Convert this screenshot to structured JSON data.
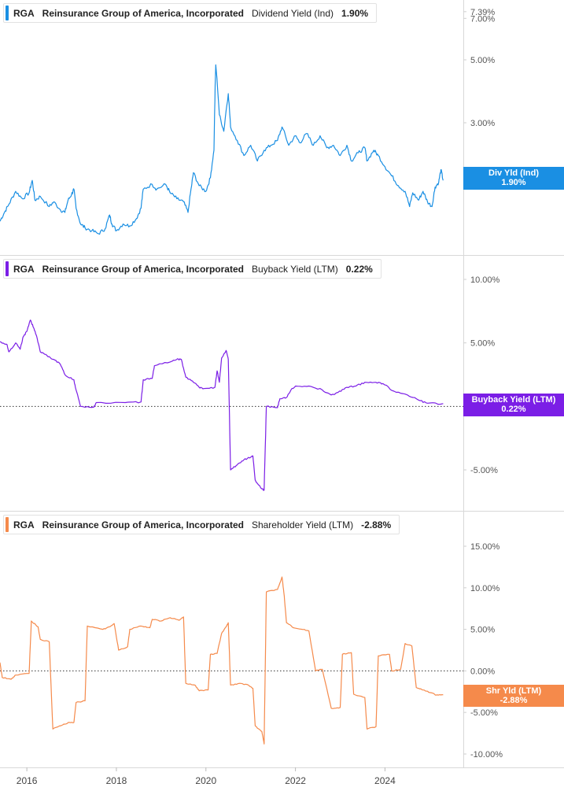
{
  "chart_data": [
    {
      "type": "line",
      "ticker": "RGA",
      "company": "Reinsurance Group of America, Incorporated",
      "metric": "Dividend Yield (Ind)",
      "latest_value": "1.90%",
      "tag_label": "Div Yld (Ind)",
      "tag_value": "1.90%",
      "color": "#1a8fe3",
      "scale": "log",
      "y_ticks": [
        {
          "v": 7.39,
          "label": "7.39%"
        },
        {
          "v": 7.0,
          "label": "7.00%"
        },
        {
          "v": 5.0,
          "label": "5.00%"
        },
        {
          "v": 3.0,
          "label": "3.00%"
        },
        {
          "v": 2.0,
          "label": "2.00%"
        }
      ],
      "zero_line": false,
      "points": [
        [
          2015.4,
          1.35
        ],
        [
          2015.5,
          1.45
        ],
        [
          2015.6,
          1.55
        ],
        [
          2015.75,
          1.72
        ],
        [
          2015.9,
          1.62
        ],
        [
          2016.05,
          1.7
        ],
        [
          2016.12,
          1.88
        ],
        [
          2016.18,
          1.6
        ],
        [
          2016.3,
          1.65
        ],
        [
          2016.5,
          1.52
        ],
        [
          2016.6,
          1.58
        ],
        [
          2016.75,
          1.48
        ],
        [
          2016.85,
          1.45
        ],
        [
          2016.92,
          1.6
        ],
        [
          2017.0,
          1.68
        ],
        [
          2017.05,
          1.75
        ],
        [
          2017.1,
          1.5
        ],
        [
          2017.2,
          1.32
        ],
        [
          2017.3,
          1.28
        ],
        [
          2017.45,
          1.25
        ],
        [
          2017.6,
          1.22
        ],
        [
          2017.75,
          1.27
        ],
        [
          2017.85,
          1.42
        ],
        [
          2017.9,
          1.32
        ],
        [
          2018.0,
          1.25
        ],
        [
          2018.15,
          1.32
        ],
        [
          2018.3,
          1.3
        ],
        [
          2018.45,
          1.38
        ],
        [
          2018.55,
          1.5
        ],
        [
          2018.6,
          1.75
        ],
        [
          2018.8,
          1.82
        ],
        [
          2018.9,
          1.75
        ],
        [
          2019.1,
          1.82
        ],
        [
          2019.2,
          1.7
        ],
        [
          2019.35,
          1.62
        ],
        [
          2019.5,
          1.58
        ],
        [
          2019.6,
          1.45
        ],
        [
          2019.68,
          1.8
        ],
        [
          2019.72,
          2.0
        ],
        [
          2019.85,
          1.8
        ],
        [
          2020.0,
          1.72
        ],
        [
          2020.1,
          1.92
        ],
        [
          2020.18,
          2.4
        ],
        [
          2020.22,
          4.8
        ],
        [
          2020.3,
          3.2
        ],
        [
          2020.4,
          2.8
        ],
        [
          2020.5,
          3.8
        ],
        [
          2020.55,
          2.9
        ],
        [
          2020.7,
          2.6
        ],
        [
          2020.85,
          2.3
        ],
        [
          2021.0,
          2.5
        ],
        [
          2021.15,
          2.2
        ],
        [
          2021.3,
          2.4
        ],
        [
          2021.45,
          2.5
        ],
        [
          2021.6,
          2.6
        ],
        [
          2021.7,
          2.9
        ],
        [
          2021.85,
          2.5
        ],
        [
          2022.0,
          2.7
        ],
        [
          2022.1,
          2.55
        ],
        [
          2022.25,
          2.75
        ],
        [
          2022.4,
          2.5
        ],
        [
          2022.55,
          2.7
        ],
        [
          2022.7,
          2.45
        ],
        [
          2022.85,
          2.5
        ],
        [
          2023.0,
          2.3
        ],
        [
          2023.15,
          2.5
        ],
        [
          2023.25,
          2.2
        ],
        [
          2023.4,
          2.35
        ],
        [
          2023.55,
          2.45
        ],
        [
          2023.6,
          2.2
        ],
        [
          2023.75,
          2.4
        ],
        [
          2023.85,
          2.3
        ],
        [
          2024.0,
          2.1
        ],
        [
          2024.15,
          1.95
        ],
        [
          2024.3,
          1.8
        ],
        [
          2024.45,
          1.72
        ],
        [
          2024.55,
          1.52
        ],
        [
          2024.62,
          1.7
        ],
        [
          2024.75,
          1.6
        ],
        [
          2024.85,
          1.72
        ],
        [
          2024.95,
          1.58
        ],
        [
          2025.05,
          1.52
        ],
        [
          2025.12,
          1.78
        ],
        [
          2025.2,
          1.85
        ],
        [
          2025.25,
          2.05
        ],
        [
          2025.3,
          1.88
        ]
      ]
    },
    {
      "type": "line",
      "ticker": "RGA",
      "company": "Reinsurance Group of America, Incorporated",
      "metric": "Buyback Yield (LTM)",
      "latest_value": "0.22%",
      "tag_label": "Buyback Yield (LTM)",
      "tag_value": "0.22%",
      "color": "#7b1ee6",
      "scale": "linear",
      "y_ticks": [
        {
          "v": 10,
          "label": "10.00%"
        },
        {
          "v": 5,
          "label": "5.00%"
        },
        {
          "v": 0,
          "label": "0.00%"
        },
        {
          "v": -5,
          "label": "-5.00%"
        }
      ],
      "zero_line": true,
      "points": [
        [
          2015.4,
          5.1
        ],
        [
          2015.55,
          4.9
        ],
        [
          2015.6,
          4.3
        ],
        [
          2015.75,
          5.0
        ],
        [
          2015.85,
          4.5
        ],
        [
          2015.92,
          5.5
        ],
        [
          2016.0,
          5.9
        ],
        [
          2016.08,
          6.8
        ],
        [
          2016.15,
          6.2
        ],
        [
          2016.22,
          5.5
        ],
        [
          2016.3,
          4.3
        ],
        [
          2016.45,
          4.0
        ],
        [
          2016.6,
          3.7
        ],
        [
          2016.75,
          3.3
        ],
        [
          2016.85,
          2.5
        ],
        [
          2017.05,
          2.1
        ],
        [
          2017.1,
          1.3
        ],
        [
          2017.2,
          0.0
        ],
        [
          2017.5,
          -0.05
        ],
        [
          2017.55,
          0.3
        ],
        [
          2018.2,
          0.3
        ],
        [
          2018.55,
          0.35
        ],
        [
          2018.6,
          2.1
        ],
        [
          2018.8,
          2.2
        ],
        [
          2018.85,
          3.2
        ],
        [
          2019.2,
          3.5
        ],
        [
          2019.35,
          3.7
        ],
        [
          2019.45,
          3.7
        ],
        [
          2019.55,
          2.3
        ],
        [
          2019.7,
          2.0
        ],
        [
          2019.85,
          1.5
        ],
        [
          2019.95,
          1.4
        ],
        [
          2020.2,
          1.5
        ],
        [
          2020.25,
          2.8
        ],
        [
          2020.3,
          1.9
        ],
        [
          2020.35,
          3.8
        ],
        [
          2020.45,
          4.4
        ],
        [
          2020.5,
          3.7
        ],
        [
          2020.55,
          -5.0
        ],
        [
          2020.7,
          -4.6
        ],
        [
          2020.85,
          -4.2
        ],
        [
          2021.0,
          -4.0
        ],
        [
          2021.05,
          -3.9
        ],
        [
          2021.1,
          -5.8
        ],
        [
          2021.25,
          -6.5
        ],
        [
          2021.3,
          -6.6
        ],
        [
          2021.35,
          0.0
        ],
        [
          2021.6,
          -0.1
        ],
        [
          2021.65,
          0.6
        ],
        [
          2021.8,
          0.7
        ],
        [
          2021.9,
          1.3
        ],
        [
          2022.0,
          1.6
        ],
        [
          2022.3,
          1.6
        ],
        [
          2022.6,
          1.3
        ],
        [
          2022.8,
          0.9
        ],
        [
          2022.95,
          1.1
        ],
        [
          2023.15,
          1.5
        ],
        [
          2023.35,
          1.6
        ],
        [
          2023.55,
          1.9
        ],
        [
          2023.8,
          1.9
        ],
        [
          2023.95,
          1.8
        ],
        [
          2024.2,
          1.2
        ],
        [
          2024.5,
          0.9
        ],
        [
          2024.75,
          0.5
        ],
        [
          2024.95,
          0.25
        ],
        [
          2025.3,
          0.22
        ]
      ]
    },
    {
      "type": "line",
      "ticker": "RGA",
      "company": "Reinsurance Group of America, Incorporated",
      "metric": "Shareholder Yield (LTM)",
      "latest_value": "-2.88%",
      "tag_label": "Shr Yld (LTM)",
      "tag_value": "-2.88%",
      "color": "#f58a4b",
      "scale": "linear",
      "y_ticks": [
        {
          "v": 15,
          "label": "15.00%"
        },
        {
          "v": 10,
          "label": "10.00%"
        },
        {
          "v": 5,
          "label": "5.00%"
        },
        {
          "v": 0,
          "label": "0.00%"
        },
        {
          "v": -5,
          "label": "-5.00%"
        },
        {
          "v": -10,
          "label": "-10.00%"
        }
      ],
      "zero_line": true,
      "points": [
        [
          2015.4,
          1.0
        ],
        [
          2015.45,
          -0.8
        ],
        [
          2015.65,
          -1.0
        ],
        [
          2015.75,
          -0.5
        ],
        [
          2016.05,
          -0.3
        ],
        [
          2016.1,
          6.0
        ],
        [
          2016.25,
          5.3
        ],
        [
          2016.3,
          3.8
        ],
        [
          2016.5,
          3.5
        ],
        [
          2016.58,
          -7.0
        ],
        [
          2016.8,
          -6.5
        ],
        [
          2016.95,
          -6.2
        ],
        [
          2017.05,
          -6.2
        ],
        [
          2017.1,
          -3.8
        ],
        [
          2017.3,
          -3.6
        ],
        [
          2017.35,
          5.4
        ],
        [
          2017.7,
          5.0
        ],
        [
          2017.85,
          5.3
        ],
        [
          2017.95,
          5.7
        ],
        [
          2018.05,
          2.5
        ],
        [
          2018.25,
          2.9
        ],
        [
          2018.3,
          5.0
        ],
        [
          2018.55,
          5.4
        ],
        [
          2018.75,
          5.2
        ],
        [
          2018.8,
          6.2
        ],
        [
          2019.0,
          6.0
        ],
        [
          2019.2,
          6.4
        ],
        [
          2019.4,
          6.1
        ],
        [
          2019.5,
          6.5
        ],
        [
          2019.55,
          -1.5
        ],
        [
          2019.75,
          -1.7
        ],
        [
          2019.85,
          -2.4
        ],
        [
          2020.05,
          -2.3
        ],
        [
          2020.1,
          2.0
        ],
        [
          2020.25,
          2.1
        ],
        [
          2020.35,
          4.5
        ],
        [
          2020.45,
          5.3
        ],
        [
          2020.5,
          5.8
        ],
        [
          2020.55,
          -1.7
        ],
        [
          2020.75,
          -1.5
        ],
        [
          2020.95,
          -1.7
        ],
        [
          2021.05,
          -2.1
        ],
        [
          2021.1,
          -6.6
        ],
        [
          2021.25,
          -7.3
        ],
        [
          2021.3,
          -8.8
        ],
        [
          2021.35,
          9.5
        ],
        [
          2021.6,
          9.8
        ],
        [
          2021.7,
          11.3
        ],
        [
          2021.75,
          9.0
        ],
        [
          2021.8,
          5.8
        ],
        [
          2021.95,
          5.2
        ],
        [
          2022.15,
          5.0
        ],
        [
          2022.3,
          4.8
        ],
        [
          2022.45,
          0.0
        ],
        [
          2022.6,
          0.2
        ],
        [
          2022.8,
          -4.5
        ],
        [
          2023.0,
          -4.4
        ],
        [
          2023.05,
          2.0
        ],
        [
          2023.25,
          2.2
        ],
        [
          2023.3,
          -2.8
        ],
        [
          2023.55,
          -3.2
        ],
        [
          2023.6,
          -7.0
        ],
        [
          2023.8,
          -6.7
        ],
        [
          2023.85,
          1.8
        ],
        [
          2024.1,
          2.0
        ],
        [
          2024.15,
          0.0
        ],
        [
          2024.35,
          0.2
        ],
        [
          2024.45,
          3.3
        ],
        [
          2024.6,
          3.0
        ],
        [
          2024.7,
          -2.0
        ],
        [
          2024.85,
          -2.3
        ],
        [
          2025.0,
          -2.6
        ],
        [
          2025.15,
          -2.9
        ],
        [
          2025.3,
          -2.88
        ]
      ]
    }
  ],
  "x_axis": {
    "range": [
      2015.4,
      2025.75
    ],
    "ticks": [
      {
        "v": 2016,
        "label": "2016"
      },
      {
        "v": 2018,
        "label": "2018"
      },
      {
        "v": 2020,
        "label": "2020"
      },
      {
        "v": 2022,
        "label": "2022"
      },
      {
        "v": 2024,
        "label": "2024"
      }
    ]
  }
}
